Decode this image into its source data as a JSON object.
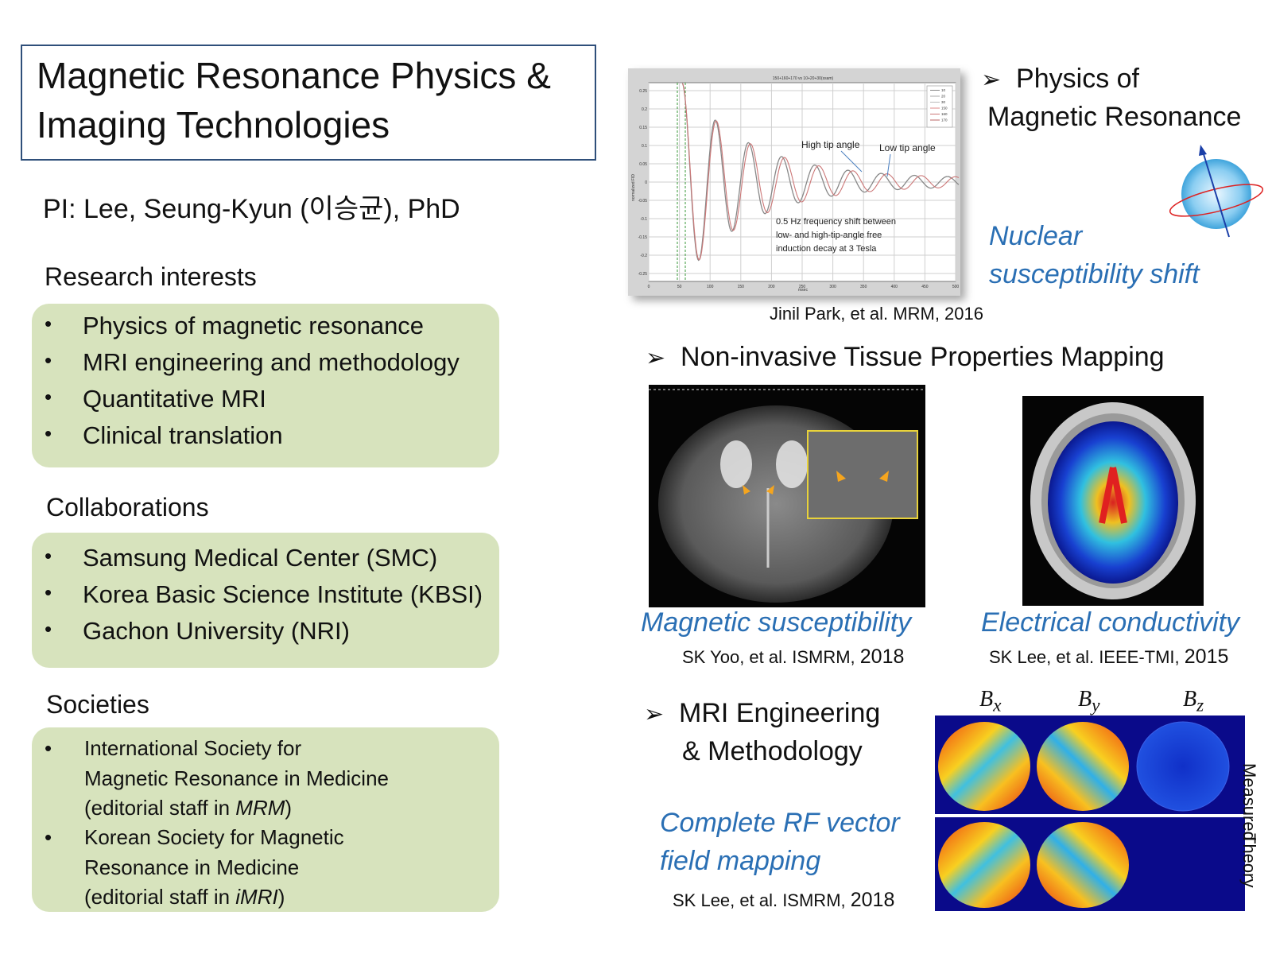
{
  "title": {
    "line1": "Magnetic Resonance Physics &",
    "line2": "Imaging Technologies"
  },
  "pi": "PI: Lee, Seung-Kyun (이승균), PhD",
  "research": {
    "heading": "Research interests",
    "items": [
      "Physics of magnetic resonance",
      "MRI engineering and methodology",
      "Quantitative MRI",
      "Clinical translation"
    ]
  },
  "collaborations": {
    "heading": "Collaborations",
    "items": [
      "Samsung Medical Center (SMC)",
      "Korea Basic Science Institute (KBSI)",
      "Gachon University (NRI)"
    ]
  },
  "societies": {
    "heading": "Societies",
    "items": [
      {
        "line1": "International Society for",
        "line2": "Magnetic Resonance in Medicine",
        "line3_pre": "(editorial staff in ",
        "line3_it": "MRM",
        "line3_post": ")"
      },
      {
        "line1": "Korean Society for Magnetic",
        "line2": "Resonance in Medicine",
        "line3_pre": "(editorial  staff in ",
        "line3_it": "iMRI",
        "line3_post": ")"
      }
    ]
  },
  "physics": {
    "heading_line1": "Physics of",
    "heading_line2": "Magnetic Resonance",
    "caption_line1": "Nuclear",
    "caption_line2": "susceptibility shift",
    "citation": "Jinil Park, et al. MRM, 2016",
    "plot": {
      "top_title": "150+160+170 vs 10+20+30(ssam)",
      "label_high": "High tip angle",
      "label_low": "Low tip angle",
      "note_line1": "0.5 Hz frequency shift between",
      "note_line2": "low- and high-tip-angle free",
      "note_line3": "induction decay at 3 Tesla",
      "ylabel": "normalized FID",
      "xlabel": "msec",
      "yticks": [
        "0.25",
        "0.2",
        "0.15",
        "0.1",
        "0.05",
        "0",
        "-0.05",
        "-0.1",
        "-0.15",
        "-0.2",
        "-0.25"
      ],
      "xticks": [
        "0",
        "50",
        "100",
        "150",
        "200",
        "250",
        "300",
        "350",
        "400",
        "450",
        "500"
      ],
      "legend": [
        "10",
        "20",
        "30",
        "150",
        "160",
        "170"
      ]
    }
  },
  "tissue": {
    "heading": "Non-invasive Tissue Properties Mapping",
    "caption_left": "Magnetic susceptibility",
    "cite_left_pre": "SK Yoo, et al. ISMRM, ",
    "cite_left_year": "2018",
    "caption_right": "Electrical conductivity",
    "cite_right_pre": "SK Lee, et al. IEEE-TMI, ",
    "cite_right_year": "2015"
  },
  "engineering": {
    "heading_line1": "MRI Engineering",
    "heading_line2": "& Methodology",
    "caption_line1": "Complete RF vector",
    "caption_line2": "field mapping",
    "cite_pre": "SK Lee, et al. ISMRM, ",
    "cite_year": "2018",
    "col_labels": [
      "B",
      "B",
      "B"
    ],
    "col_subs": [
      "x",
      "y",
      "z"
    ],
    "row_labels": [
      "Measured",
      "Theory"
    ]
  },
  "colors": {
    "green_box": "#d7e3bd",
    "title_border": "#2f4f7a",
    "caption_blue": "#2a6fb4",
    "map_bg": "#0a0a8a"
  }
}
